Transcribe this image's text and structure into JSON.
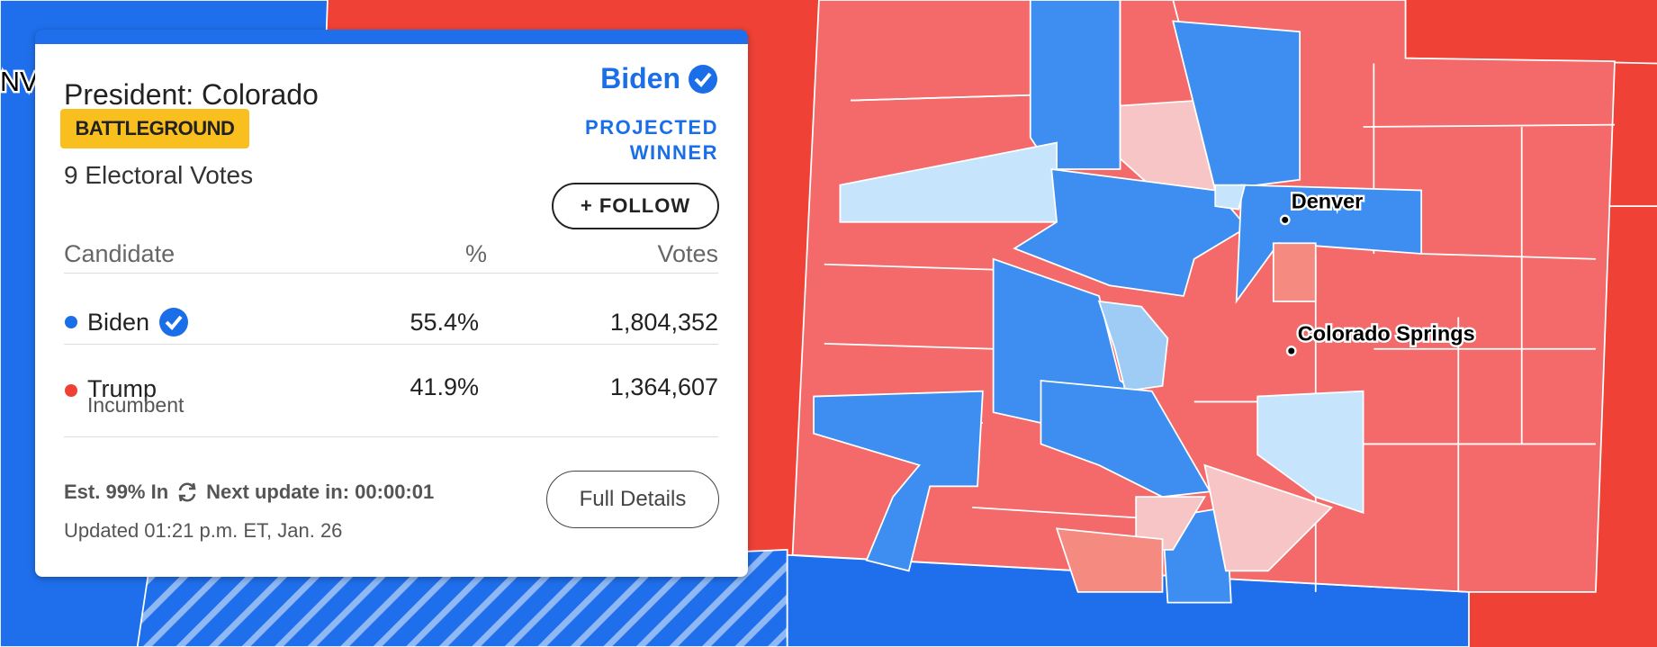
{
  "card": {
    "title": "President: Colorado",
    "badge": "BATTLEGROUND",
    "electoral_votes": "9 Electoral Votes",
    "winner": {
      "name": "Biden",
      "status_line1": "PROJECTED",
      "status_line2": "WINNER"
    },
    "follow_button": "+ FOLLOW",
    "table": {
      "headers": [
        "Candidate",
        "%",
        "Votes"
      ],
      "rows": [
        {
          "name": "Biden",
          "percent": "55.4%",
          "votes": "1,804,352"
        },
        {
          "name": "Trump",
          "note": "Incumbent",
          "percent": "41.9%",
          "votes": "1,364,607"
        }
      ]
    },
    "reporting": "Est. 99% In",
    "next_update": "Next update in: 00:00:01",
    "updated": "Updated 01:21 p.m. ET, Jan. 26",
    "details_button": "Full Details"
  },
  "map": {
    "state_label": "NV",
    "cities": [
      "Denver",
      "Colorado Springs"
    ]
  }
}
